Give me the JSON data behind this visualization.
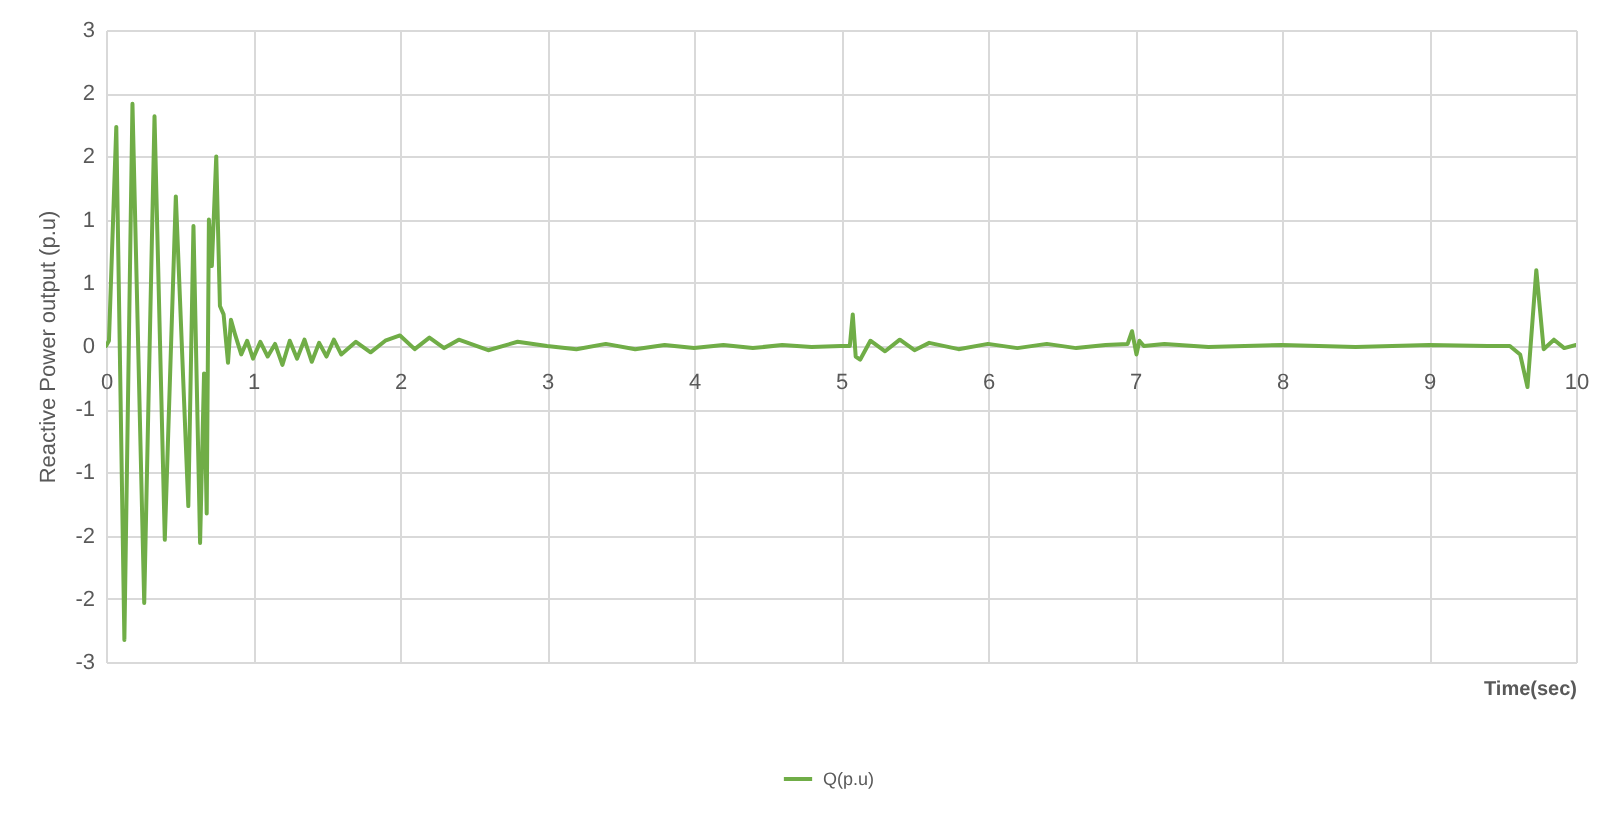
{
  "chart_data": {
    "type": "line",
    "ylabel": "Reactive Power output (p.u)",
    "xlabel": "Time(sec)",
    "xlim": [
      0,
      10
    ],
    "xticks": [
      0,
      1,
      2,
      3,
      4,
      5,
      6,
      7,
      8,
      9,
      10
    ],
    "ylim": [
      -3,
      3
    ],
    "yticks": [
      3,
      {
        "value": 2.4,
        "label": "2"
      },
      {
        "value": 1.8,
        "label": "2"
      },
      {
        "value": 1.2,
        "label": "1"
      },
      {
        "value": 0.6,
        "label": "1"
      },
      0,
      {
        "value": -0.6,
        "label": "-1"
      },
      {
        "value": -1.2,
        "label": "-1"
      },
      {
        "value": -1.8,
        "label": "-2"
      },
      {
        "value": -2.4,
        "label": "-2"
      },
      -3
    ],
    "grid": true,
    "legend": "bottom",
    "marker": "none",
    "line_style": "solid",
    "x": [
      0,
      0.02,
      0.07,
      0.125,
      0.18,
      0.26,
      0.33,
      0.4,
      0.475,
      0.56,
      0.595,
      0.64,
      0.667,
      0.685,
      0.7,
      0.72,
      0.75,
      0.775,
      0.8,
      0.83,
      0.85,
      0.88,
      0.92,
      0.96,
      1.0,
      1.05,
      1.1,
      1.15,
      1.2,
      1.25,
      1.3,
      1.35,
      1.4,
      1.45,
      1.5,
      1.55,
      1.6,
      1.7,
      1.8,
      1.9,
      2.0,
      2.1,
      2.2,
      2.3,
      2.4,
      2.6,
      2.8,
      3.0,
      3.2,
      3.4,
      3.6,
      3.8,
      4.0,
      4.2,
      4.4,
      4.6,
      4.8,
      5.0,
      5.06,
      5.08,
      5.1,
      5.13,
      5.2,
      5.3,
      5.4,
      5.5,
      5.6,
      5.8,
      6.0,
      6.2,
      6.4,
      6.6,
      6.8,
      6.95,
      6.98,
      7.01,
      7.03,
      7.06,
      7.2,
      7.5,
      8.0,
      8.5,
      9.0,
      9.4,
      9.55,
      9.62,
      9.67,
      9.73,
      9.78,
      9.85,
      9.92,
      10
    ],
    "series": [
      {
        "name": "Q(p.u)",
        "color": "#70ad47",
        "values": [
          0,
          0.05,
          2.08,
          -2.79,
          2.3,
          -2.44,
          2.18,
          -1.84,
          1.42,
          -1.52,
          1.14,
          -1.87,
          -0.26,
          -1.59,
          1.2,
          0.76,
          1.8,
          0.38,
          0.3,
          -0.16,
          0.25,
          0.1,
          -0.08,
          0.05,
          -0.12,
          0.04,
          -0.1,
          0.02,
          -0.18,
          0.05,
          -0.12,
          0.06,
          -0.15,
          0.03,
          -0.1,
          0.06,
          -0.08,
          0.04,
          -0.06,
          0.05,
          0.1,
          -0.03,
          0.08,
          -0.02,
          0.06,
          -0.04,
          0.04,
          0,
          -0.03,
          0.02,
          -0.03,
          0.01,
          -0.02,
          0.01,
          -0.02,
          0.01,
          -0.01,
          0,
          0,
          0.3,
          -0.1,
          -0.13,
          0.05,
          -0.05,
          0.06,
          -0.04,
          0.03,
          -0.03,
          0.02,
          -0.02,
          0.02,
          -0.02,
          0.01,
          0.02,
          0.14,
          -0.08,
          0.05,
          0,
          0.02,
          -0.01,
          0.01,
          -0.01,
          0.01,
          0,
          0,
          -0.08,
          -0.39,
          0.72,
          -0.03,
          0.06,
          -0.02,
          0.01
        ]
      }
    ]
  }
}
